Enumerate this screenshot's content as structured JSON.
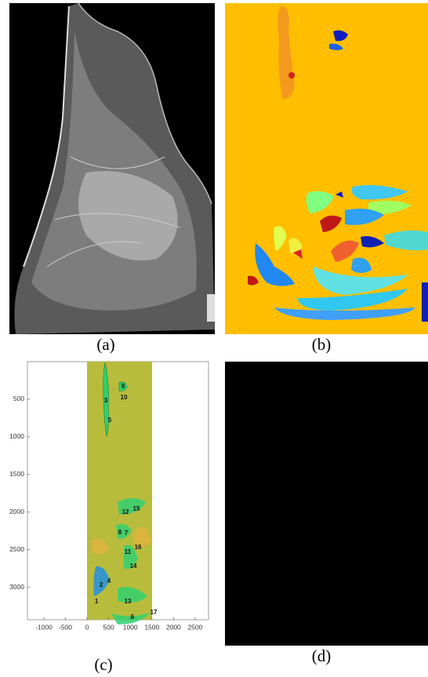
{
  "captions": [
    "(a)",
    "(b)",
    "(c)",
    "(d)"
  ],
  "chart_data": {
    "type": "annotation",
    "xlim": [
      -1380,
      2810
    ],
    "ylim": [
      0,
      3430
    ],
    "xticks": [
      -1000,
      -500,
      0,
      500,
      1000,
      1500,
      2000,
      2500
    ],
    "yticks": [
      500,
      1000,
      1500,
      2000,
      2500,
      3000
    ],
    "annotations": [
      {
        "label": "1",
        "x": 217,
        "y": 3188
      },
      {
        "label": "2",
        "x": 326,
        "y": 2969
      },
      {
        "label": "3",
        "x": 435,
        "y": 521
      },
      {
        "label": "4",
        "x": 507,
        "y": 2917
      },
      {
        "label": "5",
        "x": 525,
        "y": 781
      },
      {
        "label": "6",
        "x": 1051,
        "y": 3400
      },
      {
        "label": "7",
        "x": 906,
        "y": 2281
      },
      {
        "label": "8",
        "x": 761,
        "y": 2270
      },
      {
        "label": "9",
        "x": 833,
        "y": 333
      },
      {
        "label": "10",
        "x": 851,
        "y": 480
      },
      {
        "label": "11",
        "x": 942,
        "y": 2531
      },
      {
        "label": "12",
        "x": 888,
        "y": 2000
      },
      {
        "label": "13",
        "x": 942,
        "y": 3188
      },
      {
        "label": "14",
        "x": 1069,
        "y": 2719
      },
      {
        "label": "15",
        "x": 1141,
        "y": 1958
      },
      {
        "label": "16",
        "x": 1178,
        "y": 2469
      },
      {
        "label": "17",
        "x": 1540,
        "y": 3333
      }
    ]
  }
}
